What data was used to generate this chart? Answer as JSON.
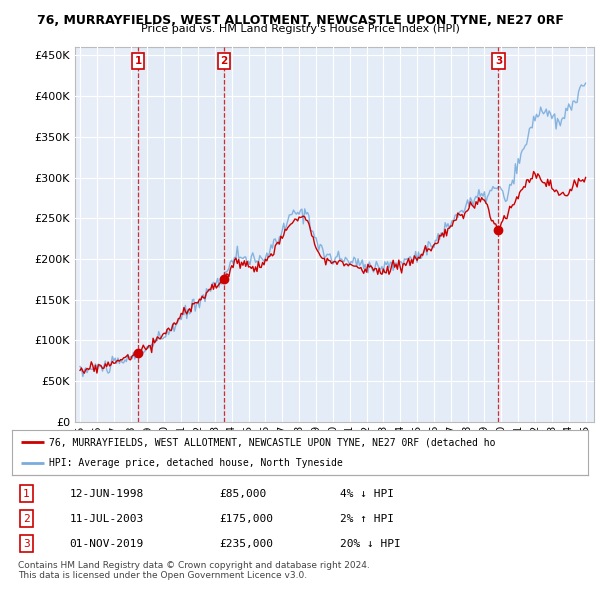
{
  "title": "76, MURRAYFIELDS, WEST ALLOTMENT, NEWCASTLE UPON TYNE, NE27 0RF",
  "subtitle": "Price paid vs. HM Land Registry's House Price Index (HPI)",
  "legend_line1": "76, MURRAYFIELDS, WEST ALLOTMENT, NEWCASTLE UPON TYNE, NE27 0RF (detached ho",
  "legend_line2": "HPI: Average price, detached house, North Tyneside",
  "footer1": "Contains HM Land Registry data © Crown copyright and database right 2024.",
  "footer2": "This data is licensed under the Open Government Licence v3.0.",
  "sales": [
    {
      "num": 1,
      "date": "12-JUN-1998",
      "price": 85000,
      "pct": "4%",
      "dir": "↓",
      "year_x": 1998.45
    },
    {
      "num": 2,
      "date": "11-JUL-2003",
      "price": 175000,
      "pct": "2%",
      "dir": "↑",
      "year_x": 2003.53
    },
    {
      "num": 3,
      "date": "01-NOV-2019",
      "price": 235000,
      "pct": "20%",
      "dir": "↓",
      "year_x": 2019.83
    }
  ],
  "hpi_color": "#7aaddd",
  "price_paid_color": "#cc0000",
  "dashed_line_color": "#cc0000",
  "marker_color": "#cc0000",
  "shade_color": "#dce8f5",
  "ylim": [
    0,
    460000
  ],
  "yticks": [
    0,
    50000,
    100000,
    150000,
    200000,
    250000,
    300000,
    350000,
    400000,
    450000
  ],
  "xlim_start": 1994.7,
  "xlim_end": 2025.5,
  "background_color": "#ffffff",
  "plot_bg_color": "#e8eef8"
}
